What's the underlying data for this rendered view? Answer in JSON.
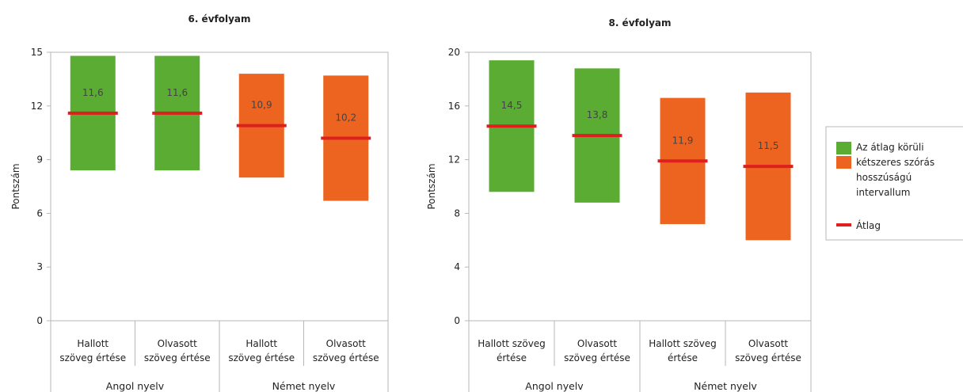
{
  "colors": {
    "green": "#5aac32",
    "orange": "#ec6420",
    "mean_line": "#dd1f1f",
    "axis": "#b7b7b7"
  },
  "legend": {
    "interval_label": "Az átlag körüli kétszeres szórás hosszúságú intervallum",
    "interval_label_lines": [
      "Az átlag körüli",
      "kétszeres szórás",
      "hosszúságú",
      "intervallum"
    ],
    "mean_label": "Átlag"
  },
  "chart_data": [
    {
      "type": "bar",
      "title": "6. évfolyam",
      "ylabel": "Pontszám",
      "ylim": [
        0,
        15
      ],
      "yticks": [
        0,
        3,
        6,
        9,
        12,
        15
      ],
      "grid": false,
      "categories": [
        {
          "lines": [
            "Hallott",
            "szöveg értése"
          ],
          "group": "Angol nyelv",
          "color": "green"
        },
        {
          "lines": [
            "Olvasott",
            "szöveg értése"
          ],
          "group": "Angol nyelv",
          "color": "green"
        },
        {
          "lines": [
            "Hallott",
            "szöveg értése"
          ],
          "group": "Német nyelv",
          "color": "orange"
        },
        {
          "lines": [
            "Olvasott",
            "szöveg értése"
          ],
          "group": "Német nyelv",
          "color": "orange"
        }
      ],
      "groups": [
        "Angol nyelv",
        "Német nyelv"
      ],
      "series": [
        {
          "name": "Az átlag körüli kétszeres szórás hosszúságú intervallum",
          "low": [
            8.4,
            8.4,
            8.0,
            6.7
          ],
          "high": [
            14.8,
            14.8,
            13.8,
            13.7
          ]
        },
        {
          "name": "Átlag",
          "values": [
            11.6,
            11.6,
            10.9,
            10.2
          ]
        }
      ],
      "value_labels": [
        "11,6",
        "11,6",
        "10,9",
        "10,2"
      ]
    },
    {
      "type": "bar",
      "title": "8. évfolyam",
      "ylabel": "Pontszám",
      "ylim": [
        0,
        20
      ],
      "yticks": [
        0,
        4,
        8,
        12,
        16,
        20
      ],
      "grid": false,
      "categories": [
        {
          "lines": [
            "Hallott szöveg",
            "értése"
          ],
          "group": "Angol nyelv",
          "color": "green"
        },
        {
          "lines": [
            "Olvasott",
            "szöveg értése"
          ],
          "group": "Angol nyelv",
          "color": "green"
        },
        {
          "lines": [
            "Hallott szöveg",
            "értése"
          ],
          "group": "Német nyelv",
          "color": "orange"
        },
        {
          "lines": [
            "Olvasott",
            "szöveg értése"
          ],
          "group": "Német nyelv",
          "color": "orange"
        }
      ],
      "groups": [
        "Angol nyelv",
        "Német nyelv"
      ],
      "series": [
        {
          "name": "Az átlag körüli kétszeres szórás hosszúságú intervallum",
          "low": [
            9.6,
            8.8,
            7.2,
            6.0
          ],
          "high": [
            19.4,
            18.8,
            16.6,
            17.0
          ]
        },
        {
          "name": "Átlag",
          "values": [
            14.5,
            13.8,
            11.9,
            11.5
          ]
        }
      ],
      "value_labels": [
        "14,5",
        "13,8",
        "11,9",
        "11,5"
      ]
    }
  ]
}
